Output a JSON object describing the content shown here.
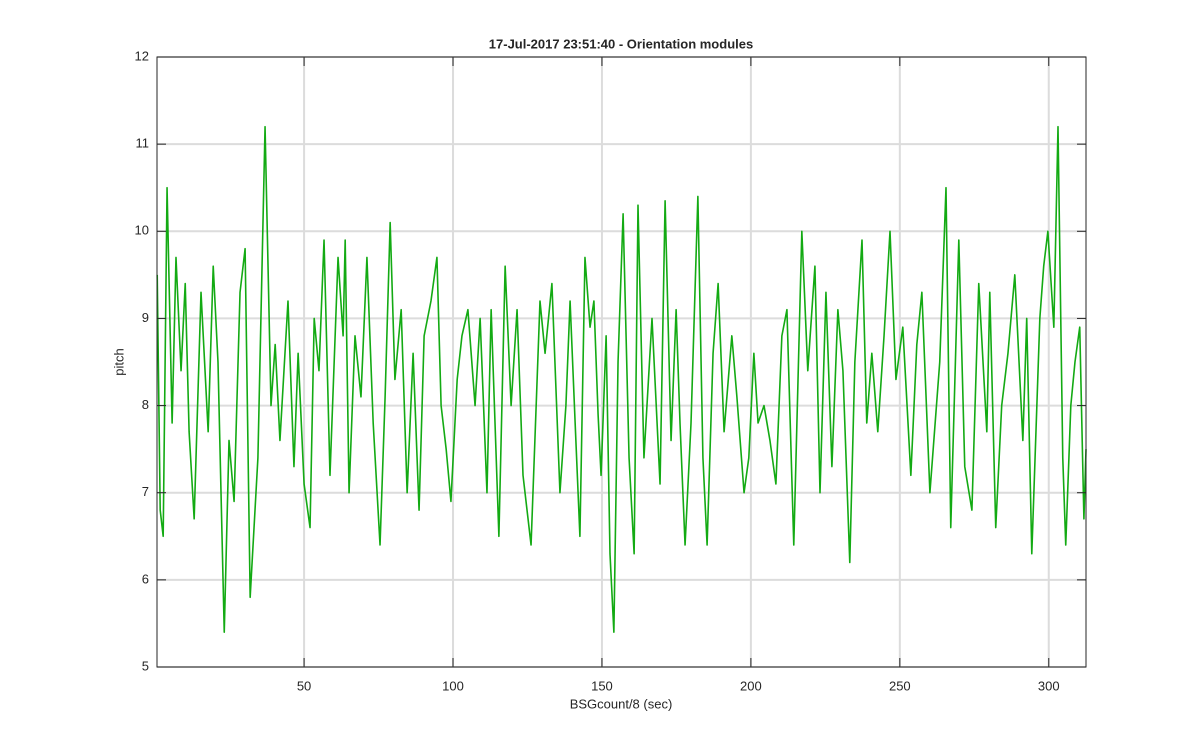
{
  "chart_data": {
    "type": "line",
    "title": "17-Jul-2017 23:51:40 - Orientation modules",
    "x_label": "BSGcount/8 (sec)",
    "y_label": "pitch",
    "x": [
      0.7,
      1.7,
      2.7,
      4.0,
      5.7,
      7.0,
      8.7,
      10.1,
      11.4,
      13.1,
      15.4,
      17.8,
      19.5,
      21.1,
      23.2,
      24.8,
      26.5,
      28.5,
      30.2,
      31.9,
      34.5,
      36.9,
      38.9,
      40.3,
      41.9,
      44.6,
      46.6,
      48.0,
      50.0,
      52.0,
      53.4,
      55.0,
      56.7,
      58.7,
      61.4,
      63.1,
      63.8,
      65.1,
      67.1,
      69.1,
      71.1,
      73.2,
      75.5,
      77.2,
      78.9,
      80.5,
      82.6,
      84.6,
      86.6,
      88.6,
      90.3,
      92.6,
      94.6,
      96.0,
      97.7,
      99.3,
      101.4,
      103.0,
      105.0,
      107.4,
      109.1,
      111.4,
      112.8,
      115.4,
      117.5,
      119.5,
      121.5,
      123.5,
      126.2,
      129.2,
      130.9,
      133.2,
      135.9,
      137.9,
      139.3,
      141.0,
      142.6,
      144.3,
      146.0,
      147.3,
      148.7,
      149.7,
      151.4,
      152.7,
      154.0,
      155.4,
      157.1,
      159.1,
      160.8,
      162.1,
      164.1,
      166.8,
      169.5,
      171.2,
      173.2,
      174.9,
      176.2,
      177.9,
      179.9,
      182.2,
      183.9,
      185.3,
      187.3,
      189.0,
      191.0,
      193.6,
      195.3,
      197.7,
      199.3,
      201.0,
      202.4,
      204.4,
      206.4,
      208.4,
      210.4,
      212.1,
      214.4,
      217.1,
      219.1,
      221.5,
      223.2,
      225.2,
      227.2,
      229.2,
      230.9,
      233.2,
      234.9,
      237.3,
      238.9,
      240.6,
      242.6,
      244.7,
      246.7,
      248.7,
      251.0,
      253.7,
      255.7,
      257.4,
      260.1,
      263.4,
      265.5,
      267.1,
      269.8,
      271.8,
      274.2,
      276.5,
      279.2,
      280.2,
      282.2,
      284.2,
      286.3,
      288.6,
      291.3,
      292.6,
      294.3,
      297.0,
      298.3,
      299.7,
      301.7,
      303.1,
      304.7,
      305.7,
      307.4,
      308.8,
      310.4,
      311.8,
      312.5
    ],
    "values": [
      9.5,
      6.8,
      6.5,
      10.5,
      7.8,
      9.7,
      8.4,
      9.4,
      7.7,
      6.7,
      9.3,
      7.7,
      9.6,
      8.5,
      5.4,
      7.6,
      6.9,
      9.3,
      9.8,
      5.8,
      7.4,
      11.2,
      8.0,
      8.7,
      7.6,
      9.2,
      7.3,
      8.6,
      7.1,
      6.6,
      9.0,
      8.4,
      9.9,
      7.2,
      9.7,
      8.8,
      9.9,
      7.0,
      8.8,
      8.1,
      9.7,
      7.8,
      6.4,
      8.1,
      10.1,
      8.3,
      9.1,
      7.0,
      8.6,
      6.8,
      8.8,
      9.2,
      9.7,
      8.0,
      7.5,
      6.9,
      8.3,
      8.8,
      9.1,
      8.0,
      9.0,
      7.0,
      9.1,
      6.5,
      9.6,
      8.0,
      9.1,
      7.2,
      6.4,
      9.2,
      8.6,
      9.4,
      7.0,
      8.0,
      9.2,
      7.8,
      6.5,
      9.7,
      8.9,
      9.2,
      7.9,
      7.2,
      8.8,
      6.3,
      5.4,
      8.5,
      10.2,
      7.4,
      6.3,
      10.3,
      7.4,
      9.0,
      7.1,
      10.35,
      7.6,
      9.1,
      7.8,
      6.4,
      7.8,
      10.4,
      7.4,
      6.4,
      8.6,
      9.4,
      7.7,
      8.8,
      8.1,
      7.0,
      7.4,
      8.6,
      7.8,
      8.0,
      7.6,
      7.1,
      8.8,
      9.1,
      6.4,
      10.0,
      8.4,
      9.6,
      7.0,
      9.3,
      7.3,
      9.1,
      8.4,
      6.2,
      8.5,
      9.9,
      7.8,
      8.6,
      7.7,
      8.8,
      10.0,
      8.3,
      8.9,
      7.2,
      8.7,
      9.3,
      7.0,
      8.5,
      10.5,
      6.6,
      9.9,
      7.3,
      6.8,
      9.4,
      7.7,
      9.3,
      6.6,
      8.0,
      8.6,
      9.5,
      7.6,
      9.0,
      6.3,
      9.0,
      9.6,
      10.0,
      8.9,
      11.2,
      7.4,
      6.4,
      8.0,
      8.5,
      8.9,
      6.7,
      7.5
    ],
    "color": "#13aa13",
    "xlim": [
      0.625,
      312.5
    ],
    "ylim": [
      5,
      12
    ],
    "xticks": [
      50,
      100,
      150,
      200,
      250,
      300
    ],
    "yticks": [
      5,
      6,
      7,
      8,
      9,
      10,
      11,
      12
    ],
    "grid": true
  }
}
